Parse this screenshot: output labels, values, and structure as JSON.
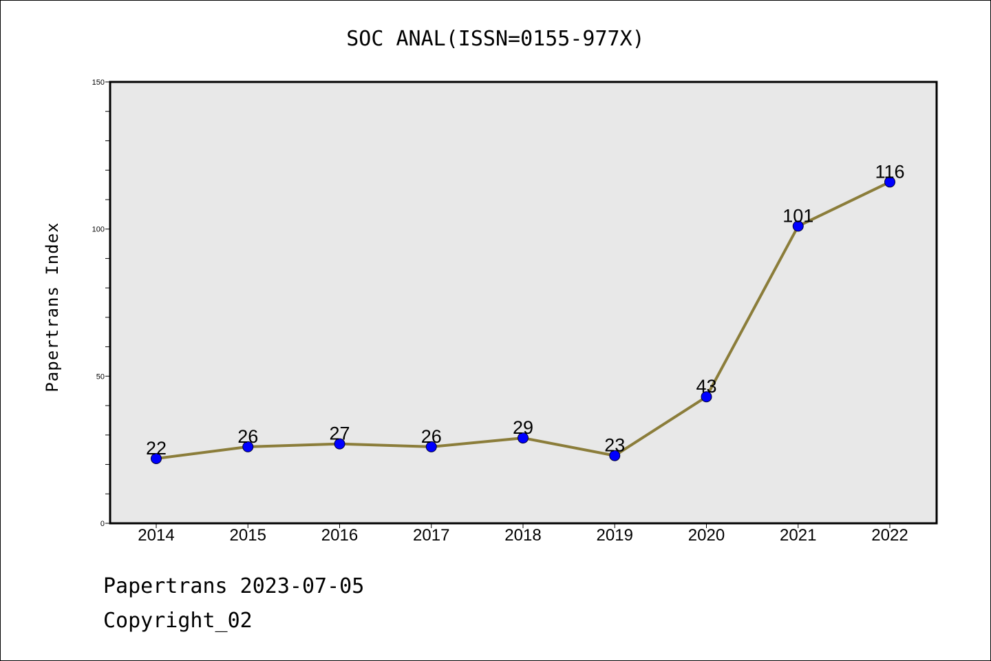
{
  "chart_data": {
    "type": "line",
    "title": "SOC ANAL(ISSN=0155-977X)",
    "ylabel": "Papertrans Index",
    "xlabel": "",
    "categories": [
      "2014",
      "2015",
      "2016",
      "2017",
      "2018",
      "2019",
      "2020",
      "2021",
      "2022"
    ],
    "series": [
      {
        "values": [
          22,
          26,
          27,
          26,
          29,
          23,
          43,
          101,
          116
        ]
      }
    ],
    "data_labels": [
      "22",
      "26",
      "27",
      "26",
      "29",
      "23",
      "43",
      "101",
      "116"
    ],
    "ylim": [
      0,
      150
    ],
    "yticks": [
      "0",
      "50",
      "100",
      "150"
    ],
    "grid": false,
    "colors": {
      "line": "#8B7D3A",
      "marker": "#0000FF",
      "plot_background": "#E8E8E8"
    }
  },
  "footer": {
    "line1": "Papertrans 2023-07-05",
    "line2": "Copyright_02"
  }
}
